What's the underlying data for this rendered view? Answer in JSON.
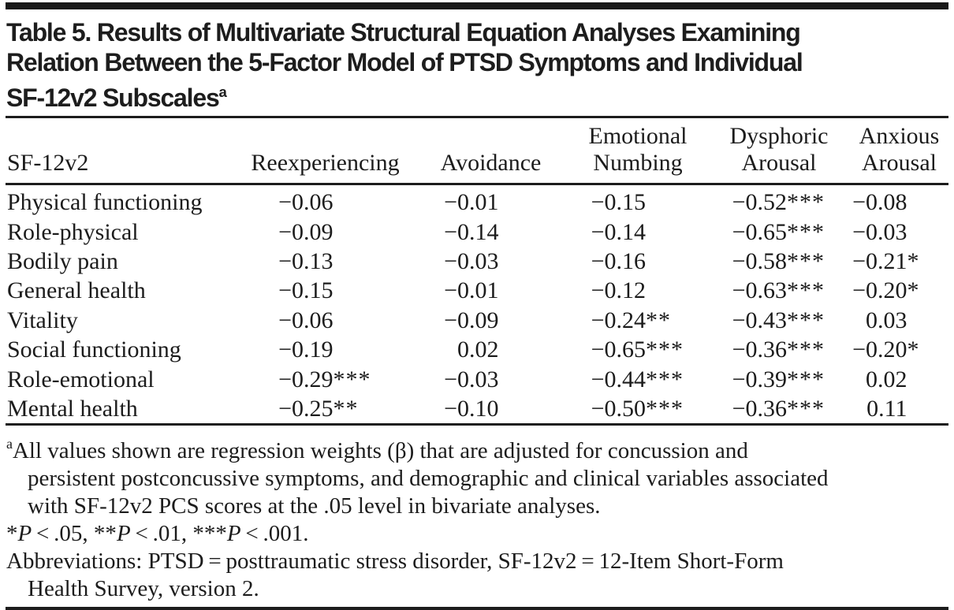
{
  "title": {
    "lines": [
      "Table 5. Results of Multivariate Structural Equation Analyses Examining",
      "Relation Between the 5-Factor Model of PTSD Symptoms and Individual",
      "SF-12v2 Subscales"
    ],
    "superscript": "a"
  },
  "table": {
    "headers": [
      {
        "line1": "",
        "line2": "SF-12v2"
      },
      {
        "line1": "",
        "line2": "Reexperiencing"
      },
      {
        "line1": "",
        "line2": "Avoidance"
      },
      {
        "line1": "Emotional",
        "line2": "Numbing"
      },
      {
        "line1": "Dysphoric",
        "line2": "Arousal"
      },
      {
        "line1": "Anxious",
        "line2": "Arousal"
      }
    ],
    "rows": [
      {
        "label": "Physical functioning",
        "values": [
          {
            "num": "−0.06",
            "stars": ""
          },
          {
            "num": "−0.01",
            "stars": ""
          },
          {
            "num": "−0.15",
            "stars": ""
          },
          {
            "num": "−0.52",
            "stars": "***"
          },
          {
            "num": "−0.08",
            "stars": ""
          }
        ]
      },
      {
        "label": "Role-physical",
        "values": [
          {
            "num": "−0.09",
            "stars": ""
          },
          {
            "num": "−0.14",
            "stars": ""
          },
          {
            "num": "−0.14",
            "stars": ""
          },
          {
            "num": "−0.65",
            "stars": "***"
          },
          {
            "num": "−0.03",
            "stars": ""
          }
        ]
      },
      {
        "label": "Bodily pain",
        "values": [
          {
            "num": "−0.13",
            "stars": ""
          },
          {
            "num": "−0.03",
            "stars": ""
          },
          {
            "num": "−0.16",
            "stars": ""
          },
          {
            "num": "−0.58",
            "stars": "***"
          },
          {
            "num": "−0.21",
            "stars": "*"
          }
        ]
      },
      {
        "label": "General health",
        "values": [
          {
            "num": "−0.15",
            "stars": ""
          },
          {
            "num": "−0.01",
            "stars": ""
          },
          {
            "num": "−0.12",
            "stars": ""
          },
          {
            "num": "−0.63",
            "stars": "***"
          },
          {
            "num": "−0.20",
            "stars": "*"
          }
        ]
      },
      {
        "label": "Vitality",
        "values": [
          {
            "num": "−0.06",
            "stars": ""
          },
          {
            "num": "−0.09",
            "stars": ""
          },
          {
            "num": "−0.24",
            "stars": "**"
          },
          {
            "num": "−0.43",
            "stars": "***"
          },
          {
            "num": "0.03",
            "stars": ""
          }
        ]
      },
      {
        "label": "Social functioning",
        "values": [
          {
            "num": "−0.19",
            "stars": ""
          },
          {
            "num": "0.02",
            "stars": ""
          },
          {
            "num": "−0.65",
            "stars": "***"
          },
          {
            "num": "−0.36",
            "stars": "***"
          },
          {
            "num": "−0.20",
            "stars": "*"
          }
        ]
      },
      {
        "label": "Role-emotional",
        "values": [
          {
            "num": "−0.29",
            "stars": "***"
          },
          {
            "num": "−0.03",
            "stars": ""
          },
          {
            "num": "−0.44",
            "stars": "***"
          },
          {
            "num": "−0.39",
            "stars": "***"
          },
          {
            "num": "0.02",
            "stars": ""
          }
        ]
      },
      {
        "label": "Mental health",
        "values": [
          {
            "num": "−0.25",
            "stars": "**"
          },
          {
            "num": "−0.10",
            "stars": ""
          },
          {
            "num": "−0.50",
            "stars": "***"
          },
          {
            "num": "−0.36",
            "stars": "***"
          },
          {
            "num": "0.11",
            "stars": ""
          }
        ]
      }
    ]
  },
  "footnotes": {
    "general": {
      "lines": [
        {
          "sup": "a",
          "text": "All values shown are regression weights (β) that are adjusted for concussion and",
          "indent": false
        },
        {
          "text": "persistent postconcussive symptoms, and demographic and clinical variables associated",
          "indent": true
        },
        {
          "text": "with SF-12v2 PCS scores at the .05 level in bivariate analyses.",
          "indent": true
        }
      ]
    },
    "significance": {
      "segments": [
        {
          "text": "*",
          "italic": false
        },
        {
          "text": "P",
          "italic": true
        },
        {
          "text": " < .05, **",
          "italic": false
        },
        {
          "text": "P",
          "italic": true
        },
        {
          "text": " < .01, ***",
          "italic": false
        },
        {
          "text": "P",
          "italic": true
        },
        {
          "text": " < .001.",
          "italic": false
        }
      ]
    },
    "abbreviations": {
      "lines": [
        {
          "text": "Abbreviations: PTSD = posttraumatic stress disorder, SF-12v2 = 12-Item Short-Form",
          "indent": false
        },
        {
          "text": "Health Survey, version 2.",
          "indent": true
        }
      ]
    }
  },
  "colors": {
    "text": "#1c1c1c",
    "rule": "#1c1c1c",
    "top_bar": "#191919",
    "background": "#ffffff"
  }
}
